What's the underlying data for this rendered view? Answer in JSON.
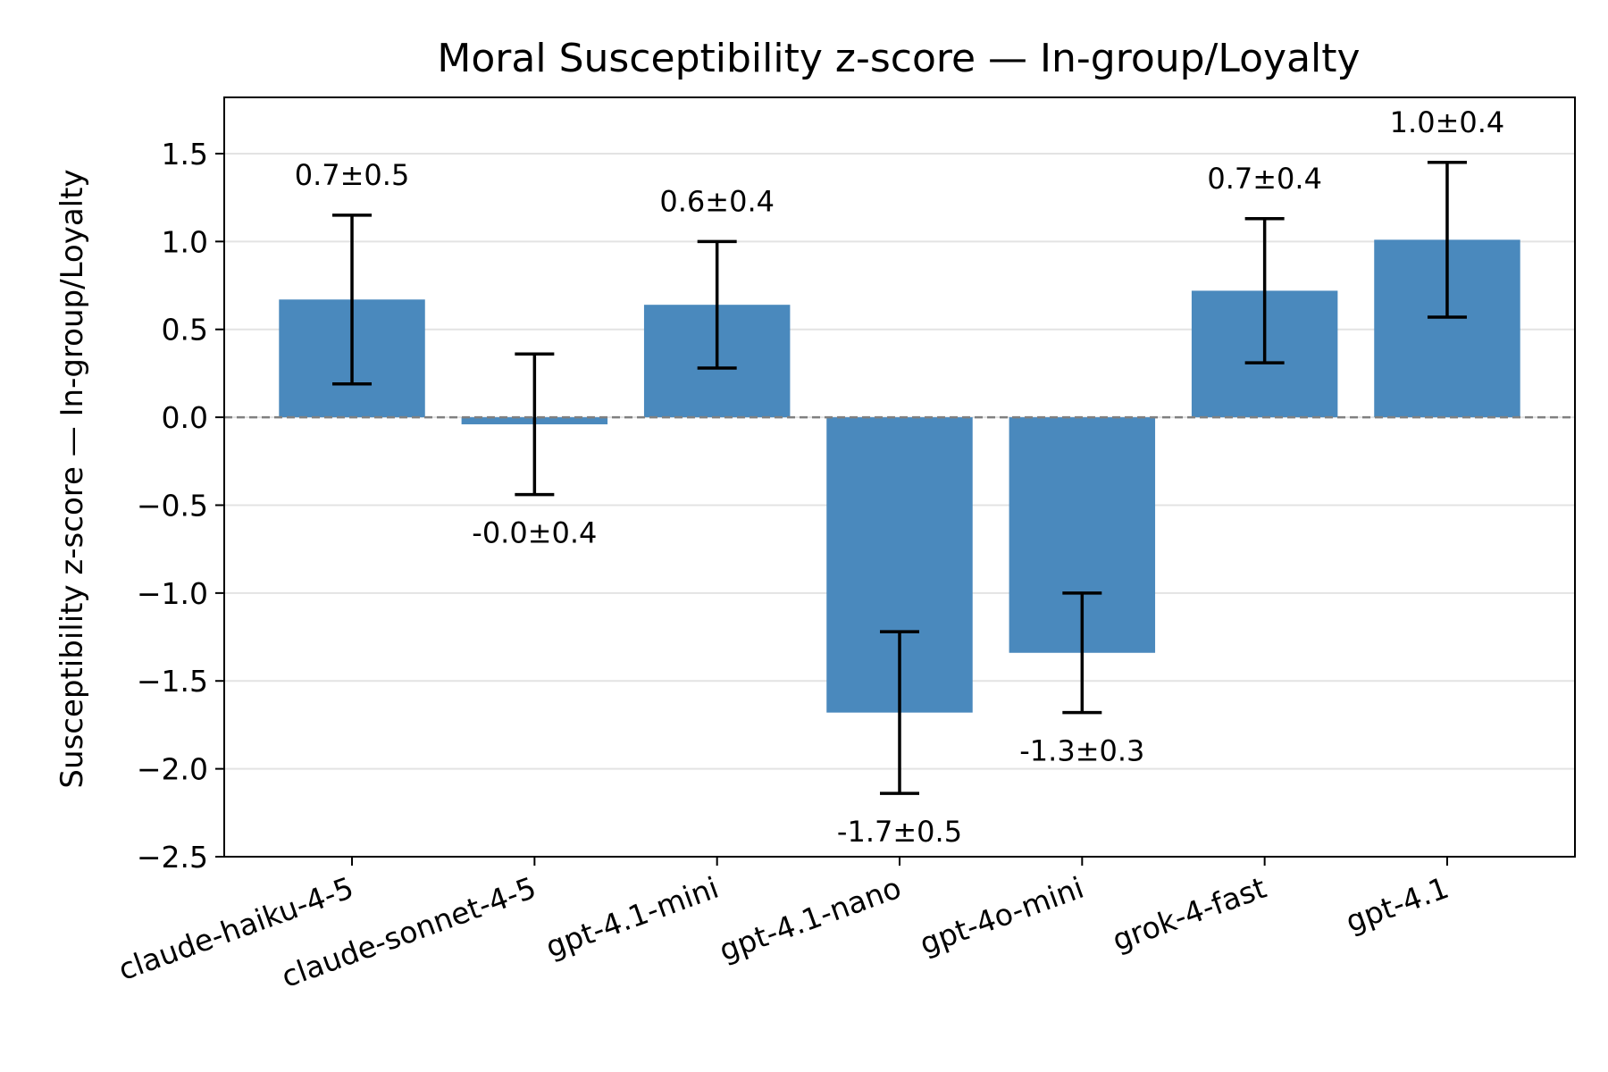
{
  "chart_data": {
    "type": "bar",
    "title": "Moral Susceptibility z-score — In-group/Loyalty",
    "xlabel": "",
    "ylabel": "Susceptibility z-score — In-group/Loyalty",
    "ylim": [
      -2.5,
      1.82
    ],
    "yticks": [
      -2.5,
      -2.0,
      -1.5,
      -1.0,
      -0.5,
      0.0,
      0.5,
      1.0,
      1.5
    ],
    "ytick_labels": [
      "−2.5",
      "−2.0",
      "−1.5",
      "−1.0",
      "−0.5",
      "0.0",
      "0.5",
      "1.0",
      "1.5"
    ],
    "grid": "horizontal",
    "zero_line": "dashed",
    "categories": [
      "claude-haiku-4-5",
      "claude-sonnet-4-5",
      "gpt-4.1-mini",
      "gpt-4.1-nano",
      "gpt-4o-mini",
      "grok-4-fast",
      "gpt-4.1"
    ],
    "values": [
      0.67,
      -0.04,
      0.64,
      -1.68,
      -1.34,
      0.72,
      1.01
    ],
    "errors": [
      0.48,
      0.4,
      0.36,
      0.46,
      0.34,
      0.41,
      0.44
    ],
    "value_labels": [
      "0.7±0.5",
      "-0.0±0.4",
      "0.6±0.4",
      "-1.7±0.5",
      "-1.3±0.3",
      "0.7±0.4",
      "1.0±0.4"
    ],
    "bar_color": "#4a89bd",
    "errorbar_color": "#000000"
  }
}
